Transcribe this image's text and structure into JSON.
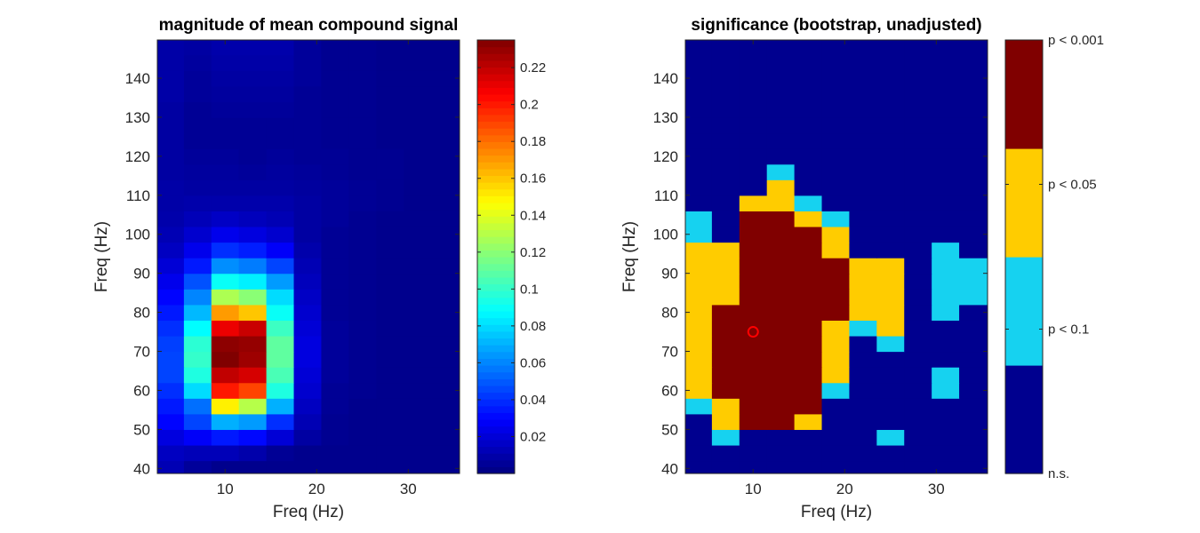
{
  "chart_data": [
    {
      "type": "heatmap",
      "title": "magnitude of mean compound signal",
      "xlabel": "Freq (Hz)",
      "ylabel": "Freq (Hz)",
      "xlim": [
        2.6,
        35.6
      ],
      "ylim": [
        38.7,
        149.8
      ],
      "xticks": [
        10,
        20,
        30
      ],
      "xtick_labels": [
        "10",
        "20",
        "30"
      ],
      "yticks": [
        40,
        50,
        60,
        70,
        80,
        90,
        100,
        110,
        120,
        130,
        140
      ],
      "ytick_labels": [
        "40",
        "50",
        "60",
        "70",
        "80",
        "90",
        "100",
        "110",
        "120",
        "130",
        "140"
      ],
      "x_bins": [
        4,
        7,
        10,
        13,
        16,
        19,
        22,
        25,
        28,
        31,
        34
      ],
      "y_bin_start": 40,
      "y_bin_step": 4,
      "values_note": "values[i][j]: row i = y bin center (40 + 4*i Hz), column j = x_bins[j]",
      "values": [
        [
          0.012,
          0.006,
          0.003,
          0.003,
          0.003,
          0.003,
          0.003,
          0.003,
          0.003,
          0.003,
          0.003
        ],
        [
          0.015,
          0.013,
          0.013,
          0.01,
          0.005,
          0.003,
          0.003,
          0.003,
          0.003,
          0.003,
          0.003
        ],
        [
          0.022,
          0.028,
          0.035,
          0.031,
          0.02,
          0.008,
          0.004,
          0.003,
          0.003,
          0.003,
          0.003
        ],
        [
          0.03,
          0.045,
          0.07,
          0.065,
          0.04,
          0.012,
          0.004,
          0.003,
          0.003,
          0.003,
          0.003
        ],
        [
          0.035,
          0.055,
          0.15,
          0.13,
          0.07,
          0.015,
          0.005,
          0.003,
          0.003,
          0.003,
          0.003
        ],
        [
          0.04,
          0.08,
          0.2,
          0.19,
          0.095,
          0.018,
          0.005,
          0.004,
          0.003,
          0.003,
          0.003
        ],
        [
          0.045,
          0.095,
          0.22,
          0.215,
          0.105,
          0.02,
          0.006,
          0.004,
          0.003,
          0.003,
          0.003
        ],
        [
          0.045,
          0.1,
          0.235,
          0.228,
          0.11,
          0.022,
          0.006,
          0.004,
          0.003,
          0.003,
          0.003
        ],
        [
          0.044,
          0.098,
          0.232,
          0.23,
          0.11,
          0.022,
          0.006,
          0.004,
          0.003,
          0.003,
          0.003
        ],
        [
          0.04,
          0.088,
          0.21,
          0.218,
          0.102,
          0.02,
          0.006,
          0.004,
          0.003,
          0.003,
          0.003
        ],
        [
          0.035,
          0.072,
          0.17,
          0.16,
          0.09,
          0.018,
          0.005,
          0.004,
          0.003,
          0.003,
          0.003
        ],
        [
          0.03,
          0.06,
          0.128,
          0.12,
          0.08,
          0.016,
          0.005,
          0.004,
          0.003,
          0.003,
          0.003
        ],
        [
          0.025,
          0.048,
          0.09,
          0.085,
          0.065,
          0.014,
          0.005,
          0.004,
          0.003,
          0.003,
          0.003
        ],
        [
          0.02,
          0.035,
          0.062,
          0.058,
          0.045,
          0.012,
          0.005,
          0.004,
          0.003,
          0.003,
          0.003
        ],
        [
          0.015,
          0.025,
          0.04,
          0.036,
          0.028,
          0.01,
          0.005,
          0.004,
          0.003,
          0.003,
          0.003
        ],
        [
          0.012,
          0.018,
          0.025,
          0.022,
          0.018,
          0.008,
          0.005,
          0.004,
          0.003,
          0.003,
          0.003
        ],
        [
          0.01,
          0.013,
          0.016,
          0.014,
          0.012,
          0.008,
          0.006,
          0.004,
          0.003,
          0.003,
          0.003
        ],
        [
          0.009,
          0.01,
          0.01,
          0.01,
          0.01,
          0.008,
          0.006,
          0.005,
          0.004,
          0.003,
          0.003
        ],
        [
          0.009,
          0.008,
          0.008,
          0.008,
          0.008,
          0.007,
          0.006,
          0.005,
          0.004,
          0.003,
          0.003
        ],
        [
          0.008,
          0.007,
          0.007,
          0.006,
          0.007,
          0.006,
          0.005,
          0.004,
          0.004,
          0.003,
          0.003
        ],
        [
          0.008,
          0.006,
          0.006,
          0.005,
          0.006,
          0.005,
          0.005,
          0.004,
          0.004,
          0.003,
          0.003
        ],
        [
          0.008,
          0.005,
          0.005,
          0.005,
          0.005,
          0.005,
          0.004,
          0.004,
          0.003,
          0.003,
          0.003
        ],
        [
          0.008,
          0.005,
          0.005,
          0.005,
          0.005,
          0.005,
          0.004,
          0.004,
          0.003,
          0.003,
          0.003
        ],
        [
          0.008,
          0.005,
          0.006,
          0.006,
          0.006,
          0.005,
          0.004,
          0.004,
          0.003,
          0.003,
          0.003
        ],
        [
          0.009,
          0.006,
          0.007,
          0.007,
          0.007,
          0.005,
          0.004,
          0.004,
          0.003,
          0.003,
          0.003
        ],
        [
          0.009,
          0.006,
          0.008,
          0.008,
          0.008,
          0.006,
          0.004,
          0.004,
          0.003,
          0.003,
          0.003
        ],
        [
          0.009,
          0.007,
          0.009,
          0.009,
          0.009,
          0.006,
          0.004,
          0.004,
          0.003,
          0.003,
          0.003
        ],
        [
          0.009,
          0.008,
          0.01,
          0.01,
          0.01,
          0.006,
          0.004,
          0.004,
          0.003,
          0.003,
          0.003
        ]
      ],
      "colorbar": {
        "clim": [
          0.0,
          0.235
        ],
        "ticks": [
          0.02,
          0.04,
          0.06,
          0.08,
          0.1,
          0.12,
          0.14,
          0.16,
          0.18,
          0.2,
          0.22
        ],
        "tick_labels": [
          "0.02",
          "0.04",
          "0.06",
          "0.08",
          "0.1",
          "0.12",
          "0.14",
          "0.16",
          "0.18",
          "0.2",
          "0.22"
        ]
      }
    },
    {
      "type": "heatmap",
      "title": "significance (bootstrap, unadjusted)",
      "xlabel": "Freq (Hz)",
      "ylabel": "Freq (Hz)",
      "xlim": [
        2.6,
        35.6
      ],
      "ylim": [
        38.7,
        149.8
      ],
      "xticks": [
        10,
        20,
        30
      ],
      "xtick_labels": [
        "10",
        "20",
        "30"
      ],
      "yticks": [
        40,
        50,
        60,
        70,
        80,
        90,
        100,
        110,
        120,
        130,
        140
      ],
      "ytick_labels": [
        "40",
        "50",
        "60",
        "70",
        "80",
        "90",
        "100",
        "110",
        "120",
        "130",
        "140"
      ],
      "x_bins": [
        4,
        7,
        10,
        13,
        16,
        19,
        22,
        25,
        28,
        31,
        34
      ],
      "y_bin_start": 40,
      "y_bin_step": 4,
      "levels_note": "0 = n.s., 1 = p < 0.1, 2 = p < 0.05, 3 = p < 0.001",
      "values": [
        [
          0,
          0,
          0,
          0,
          0,
          0,
          0,
          0,
          0,
          0,
          0
        ],
        [
          0,
          0,
          0,
          0,
          0,
          0,
          0,
          0,
          0,
          0,
          0
        ],
        [
          0,
          1,
          0,
          0,
          0,
          0,
          0,
          1,
          0,
          0,
          0
        ],
        [
          0,
          2,
          3,
          3,
          2,
          0,
          0,
          0,
          0,
          0,
          0
        ],
        [
          1,
          2,
          3,
          3,
          3,
          0,
          0,
          0,
          0,
          0,
          0
        ],
        [
          2,
          3,
          3,
          3,
          3,
          1,
          0,
          0,
          0,
          1,
          0
        ],
        [
          2,
          3,
          3,
          3,
          3,
          2,
          0,
          0,
          0,
          1,
          0
        ],
        [
          2,
          3,
          3,
          3,
          3,
          2,
          0,
          0,
          0,
          0,
          0
        ],
        [
          2,
          3,
          3,
          3,
          3,
          2,
          0,
          1,
          0,
          0,
          0
        ],
        [
          2,
          3,
          3,
          3,
          3,
          2,
          1,
          2,
          0,
          0,
          0
        ],
        [
          2,
          3,
          3,
          3,
          3,
          3,
          2,
          2,
          0,
          1,
          0
        ],
        [
          2,
          2,
          3,
          3,
          3,
          3,
          2,
          2,
          0,
          1,
          1
        ],
        [
          2,
          2,
          3,
          3,
          3,
          3,
          2,
          2,
          0,
          1,
          1
        ],
        [
          2,
          2,
          3,
          3,
          3,
          3,
          2,
          2,
          0,
          1,
          1
        ],
        [
          2,
          2,
          3,
          3,
          3,
          2,
          0,
          0,
          0,
          1,
          0
        ],
        [
          1,
          0,
          3,
          3,
          3,
          2,
          0,
          0,
          0,
          0,
          0
        ],
        [
          1,
          0,
          3,
          3,
          2,
          1,
          0,
          0,
          0,
          0,
          0
        ],
        [
          0,
          0,
          2,
          2,
          1,
          0,
          0,
          0,
          0,
          0,
          0
        ],
        [
          0,
          0,
          0,
          2,
          0,
          0,
          0,
          0,
          0,
          0,
          0
        ],
        [
          0,
          0,
          0,
          1,
          0,
          0,
          0,
          0,
          0,
          0,
          0
        ],
        [
          0,
          0,
          0,
          0,
          0,
          0,
          0,
          0,
          0,
          0,
          0
        ],
        [
          0,
          0,
          0,
          0,
          0,
          0,
          0,
          0,
          0,
          0,
          0
        ],
        [
          0,
          0,
          0,
          0,
          0,
          0,
          0,
          0,
          0,
          0,
          0
        ],
        [
          0,
          0,
          0,
          0,
          0,
          0,
          0,
          0,
          0,
          0,
          0
        ],
        [
          0,
          0,
          0,
          0,
          0,
          0,
          0,
          0,
          0,
          0,
          0
        ],
        [
          0,
          0,
          0,
          0,
          0,
          0,
          0,
          0,
          0,
          0,
          0
        ],
        [
          0,
          0,
          0,
          0,
          0,
          0,
          0,
          0,
          0,
          0,
          0
        ],
        [
          0,
          0,
          0,
          0,
          0,
          0,
          0,
          0,
          0,
          0,
          0
        ]
      ],
      "level_colors": [
        "#00008f",
        "#16d2f0",
        "#ffcc00",
        "#800000"
      ],
      "marker": {
        "x": 10,
        "y": 75,
        "color": "#ff0000",
        "shape": "circle"
      },
      "colorbar": {
        "clim": [
          0,
          1
        ],
        "ticks": [
          0.0,
          0.333,
          0.667,
          1.0
        ],
        "tick_labels": [
          "n.s.",
          "p < 0.1",
          "p < 0.05",
          "p < 0.001"
        ]
      }
    }
  ]
}
